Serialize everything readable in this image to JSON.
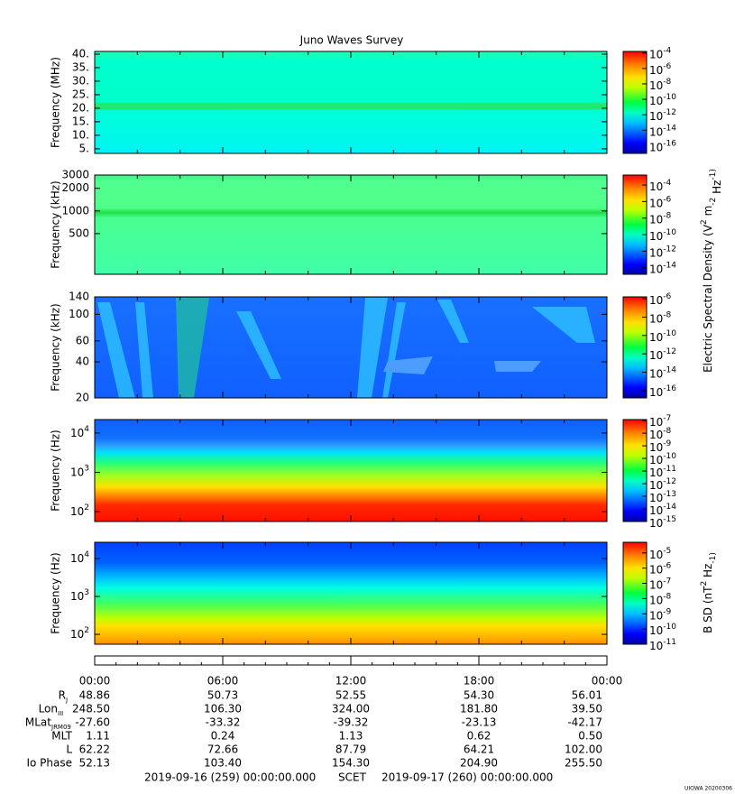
{
  "title": "Juno Waves Survey",
  "chart_data": [
    {
      "type": "spectrogram",
      "ylabel": "Frequency (MHz)",
      "log": false,
      "ylim": [
        3.3,
        41
      ],
      "yticks": [
        {
          "value": 5,
          "label": "5."
        },
        {
          "value": 10,
          "label": "10."
        },
        {
          "value": 15,
          "label": "15."
        },
        {
          "value": 20,
          "label": "20."
        },
        {
          "value": 25,
          "label": "25."
        },
        {
          "value": 30,
          "label": "30."
        },
        {
          "value": 35,
          "label": "35."
        },
        {
          "value": 40,
          "label": "40."
        }
      ],
      "clim": [
        1e-17,
        0.00016
      ],
      "cticks": [
        {
          "value": 0.0001,
          "label": "10^-4"
        },
        {
          "value": 1e-06,
          "label": "10^-6"
        },
        {
          "value": 1e-08,
          "label": "10^-8"
        },
        {
          "value": 1e-10,
          "label": "10^-10"
        },
        {
          "value": 1e-12,
          "label": "10^-12"
        },
        {
          "value": 1e-14,
          "label": "10^-14"
        },
        {
          "value": 1e-16,
          "label": "10^-16"
        }
      ]
    },
    {
      "type": "spectrogram",
      "ylabel": "Frequency (kHz)",
      "log": true,
      "ylim": [
        144,
        3000
      ],
      "yticks": [
        500,
        1000,
        2000,
        3000
      ],
      "clim": [
        1.6e-15,
        0.0016
      ],
      "cticks": [
        {
          "value": 0.0001,
          "label": "10^-4"
        },
        {
          "value": 1e-06,
          "label": "10^-6"
        },
        {
          "value": 1e-08,
          "label": "10^-8"
        },
        {
          "value": 1e-10,
          "label": "10^-10"
        },
        {
          "value": 1e-12,
          "label": "10^-12"
        },
        {
          "value": 1e-14,
          "label": "10^-14"
        }
      ]
    },
    {
      "type": "spectrogram",
      "ylabel": "Frequency (kHz)",
      "log": true,
      "ylim": [
        20,
        140
      ],
      "yticks": [
        20,
        40,
        60,
        100,
        140
      ],
      "clim": [
        1.6e-17,
        1.6e-06
      ],
      "cticks": [
        {
          "value": 1e-06,
          "label": "10^-6"
        },
        {
          "value": 1e-08,
          "label": "10^-8"
        },
        {
          "value": 1e-10,
          "label": "10^-10"
        },
        {
          "value": 1e-12,
          "label": "10^-12"
        },
        {
          "value": 1e-14,
          "label": "10^-14"
        },
        {
          "value": 1e-16,
          "label": "10^-16"
        }
      ]
    },
    {
      "type": "spectrogram",
      "ylabel": "Frequency (Hz)",
      "log": true,
      "ylim": [
        56,
        22000
      ],
      "yticks": [
        {
          "value": 100,
          "label": "10^2"
        },
        {
          "value": 1000,
          "label": "10^3"
        },
        {
          "value": 10000,
          "label": "10^4"
        }
      ],
      "clim": [
        1e-15,
        1.2e-07
      ],
      "cticks": [
        {
          "value": 1e-07,
          "label": "10^-7"
        },
        {
          "value": 1e-08,
          "label": "10^-8"
        },
        {
          "value": 1e-09,
          "label": "10^-9"
        },
        {
          "value": 1e-10,
          "label": "10^-10"
        },
        {
          "value": 1e-11,
          "label": "10^-11"
        },
        {
          "value": 1e-12,
          "label": "10^-12"
        },
        {
          "value": 1e-13,
          "label": "10^-13"
        },
        {
          "value": 1e-14,
          "label": "10^-14"
        },
        {
          "value": 1e-15,
          "label": "10^-15"
        }
      ]
    },
    {
      "type": "spectrogram",
      "ylabel": "Frequency (Hz)",
      "log": true,
      "ylim": [
        55,
        27000
      ],
      "yticks": [
        {
          "value": 100,
          "label": "10^2"
        },
        {
          "value": 1000,
          "label": "10^3"
        },
        {
          "value": 10000,
          "label": "10^4"
        }
      ],
      "clim": [
        1e-11,
        5e-05
      ],
      "cticks": [
        {
          "value": 1e-05,
          "label": "10^-5"
        },
        {
          "value": 1e-06,
          "label": "10^-6"
        },
        {
          "value": 1e-07,
          "label": "10^-7"
        },
        {
          "value": 1e-08,
          "label": "10^-8"
        },
        {
          "value": 1e-09,
          "label": "10^-9"
        },
        {
          "value": 1e-10,
          "label": "10^-10"
        },
        {
          "value": 1e-11,
          "label": "10^-11"
        }
      ]
    }
  ],
  "colorbar_labels": [
    "Electric Spectral Density (V^2 m^-2 Hz^-1)",
    "B SD (nT^2 Hz^-1)"
  ],
  "xlim": [
    0,
    24
  ],
  "xticks": [
    {
      "value": 0,
      "label": "00:00"
    },
    {
      "value": 6,
      "label": "06:00"
    },
    {
      "value": 12,
      "label": "12:00"
    },
    {
      "value": 18,
      "label": "18:00"
    },
    {
      "value": 24,
      "label": "00:00"
    }
  ],
  "ephemeris": [
    {
      "label": "R",
      "sub": "J",
      "values": [
        "48.86",
        "50.73",
        "52.55",
        "54.30",
        "56.01"
      ]
    },
    {
      "label": "Lon",
      "sub": "III",
      "values": [
        "248.50",
        "106.30",
        "324.00",
        "181.80",
        "39.50"
      ]
    },
    {
      "label": "MLat",
      "sub": "JRM09",
      "values": [
        "-27.60",
        "-33.32",
        "-39.32",
        "-23.13",
        "-42.17"
      ]
    },
    {
      "label": "MLT",
      "values": [
        "1.11",
        "0.24",
        "1.13",
        "0.62",
        "0.50"
      ]
    },
    {
      "label": "L",
      "values": [
        "62.22",
        "72.66",
        "87.79",
        "64.21",
        "102.00"
      ]
    },
    {
      "label": "Io Phase",
      "values": [
        "52.13",
        "103.40",
        "154.30",
        "204.90",
        "255.50"
      ]
    }
  ],
  "footer": {
    "start": "2019-09-16 (259) 00:00:00.000",
    "scet": "SCET",
    "end": "2019-09-17 (260) 00:00:00.000",
    "stamp": "UIOWA 20200306"
  }
}
